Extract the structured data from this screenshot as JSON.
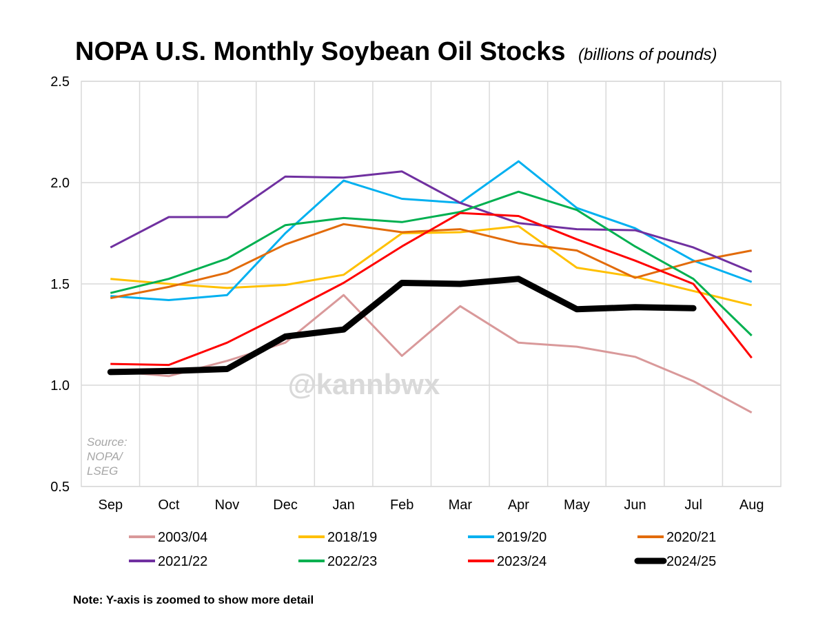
{
  "chart_data": {
    "type": "line",
    "title": "NOPA U.S. Monthly Soybean Oil Stocks",
    "subtitle": "(billions of pounds)",
    "xlabel": "",
    "ylabel": "",
    "categories": [
      "Sep",
      "Oct",
      "Nov",
      "Dec",
      "Jan",
      "Feb",
      "Mar",
      "Apr",
      "May",
      "Jun",
      "Jul",
      "Aug"
    ],
    "ylim": [
      0.5,
      2.5
    ],
    "yticks": [
      "0.5",
      "1.0",
      "1.5",
      "2.0",
      "2.5"
    ],
    "grid": true,
    "legend_position": "bottom",
    "series": [
      {
        "name": "2003/04",
        "color": "#d9999a",
        "width": 3,
        "values": [
          1.07,
          1.045,
          1.12,
          1.21,
          1.445,
          1.145,
          1.39,
          1.21,
          1.19,
          1.14,
          1.02,
          0.865
        ]
      },
      {
        "name": "2018/19",
        "color": "#ffc000",
        "width": 3,
        "values": [
          1.525,
          1.5,
          1.48,
          1.495,
          1.545,
          1.75,
          1.755,
          1.785,
          1.58,
          1.535,
          1.465,
          1.395
        ]
      },
      {
        "name": "2019/20",
        "color": "#00b0f0",
        "width": 3,
        "values": [
          1.44,
          1.42,
          1.445,
          1.75,
          2.01,
          1.92,
          1.9,
          2.105,
          1.875,
          1.775,
          1.615,
          1.51
        ]
      },
      {
        "name": "2020/21",
        "color": "#e26b0a",
        "width": 3,
        "values": [
          1.43,
          1.485,
          1.555,
          1.695,
          1.795,
          1.755,
          1.77,
          1.7,
          1.665,
          1.53,
          1.61,
          1.665
        ]
      },
      {
        "name": "2021/22",
        "color": "#7030a0",
        "width": 3,
        "values": [
          1.68,
          1.83,
          1.83,
          2.03,
          2.025,
          2.055,
          1.9,
          1.8,
          1.77,
          1.765,
          1.68,
          1.56
        ]
      },
      {
        "name": "2022/23",
        "color": "#00b050",
        "width": 3,
        "values": [
          1.455,
          1.525,
          1.625,
          1.79,
          1.825,
          1.805,
          1.855,
          1.955,
          1.865,
          1.685,
          1.525,
          1.245
        ]
      },
      {
        "name": "2023/24",
        "color": "#ff0000",
        "width": 3,
        "values": [
          1.105,
          1.1,
          1.21,
          1.355,
          1.505,
          1.685,
          1.85,
          1.835,
          1.72,
          1.615,
          1.5,
          1.135
        ]
      },
      {
        "name": "2024/25",
        "color": "#000000",
        "width": 9,
        "values": [
          1.065,
          1.07,
          1.08,
          1.24,
          1.275,
          1.505,
          1.5,
          1.525,
          1.375,
          1.385,
          1.38,
          null
        ]
      }
    ]
  },
  "source_lines": [
    "Source:",
    "NOPA/",
    "LSEG"
  ],
  "watermark": "@kannbwx",
  "note": "Note: Y-axis is zoomed to show more detail"
}
